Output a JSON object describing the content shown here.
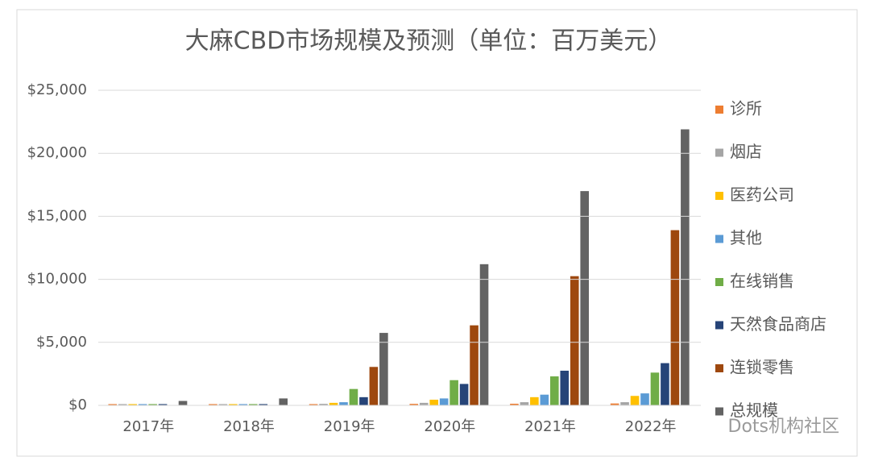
{
  "chart_data": {
    "type": "bar",
    "title": "大麻CBD市场规模及预测（单位：百万美元）",
    "categories": [
      "2017年",
      "2018年",
      "2019年",
      "2020年",
      "2021年",
      "2022年"
    ],
    "series": [
      {
        "name": "诊所",
        "color": "#ed7d31",
        "values": [
          100,
          100,
          100,
          120,
          130,
          150
        ]
      },
      {
        "name": "烟店",
        "color": "#a5a5a5",
        "values": [
          100,
          100,
          120,
          200,
          250,
          250
        ]
      },
      {
        "name": "医药公司",
        "color": "#ffc000",
        "values": [
          100,
          100,
          200,
          450,
          650,
          750
        ]
      },
      {
        "name": "其他",
        "color": "#5b9bd5",
        "values": [
          100,
          100,
          250,
          550,
          850,
          950
        ]
      },
      {
        "name": "在线销售",
        "color": "#70ad47",
        "values": [
          100,
          100,
          1300,
          2000,
          2300,
          2600
        ]
      },
      {
        "name": "天然食品商店",
        "color": "#264478",
        "values": [
          100,
          100,
          650,
          1700,
          2750,
          3350
        ]
      },
      {
        "name": "连锁零售",
        "color": "#9e480e",
        "values": [
          20,
          20,
          3050,
          6350,
          10250,
          13900
        ]
      },
      {
        "name": "总规模",
        "color": "#636363",
        "values": [
          350,
          550,
          5750,
          11200,
          17000,
          21900
        ]
      }
    ],
    "ylim": [
      0,
      25000
    ],
    "yticks": [
      {
        "value": 0,
        "label": "$0"
      },
      {
        "value": 5000,
        "label": "$5,000"
      },
      {
        "value": 10000,
        "label": "$10,000"
      },
      {
        "value": 15000,
        "label": "$15,000"
      },
      {
        "value": 20000,
        "label": "$20,000"
      },
      {
        "value": 25000,
        "label": "$25,000"
      }
    ],
    "grid": true,
    "legend": "right",
    "watermark": "Dots机构社区"
  }
}
